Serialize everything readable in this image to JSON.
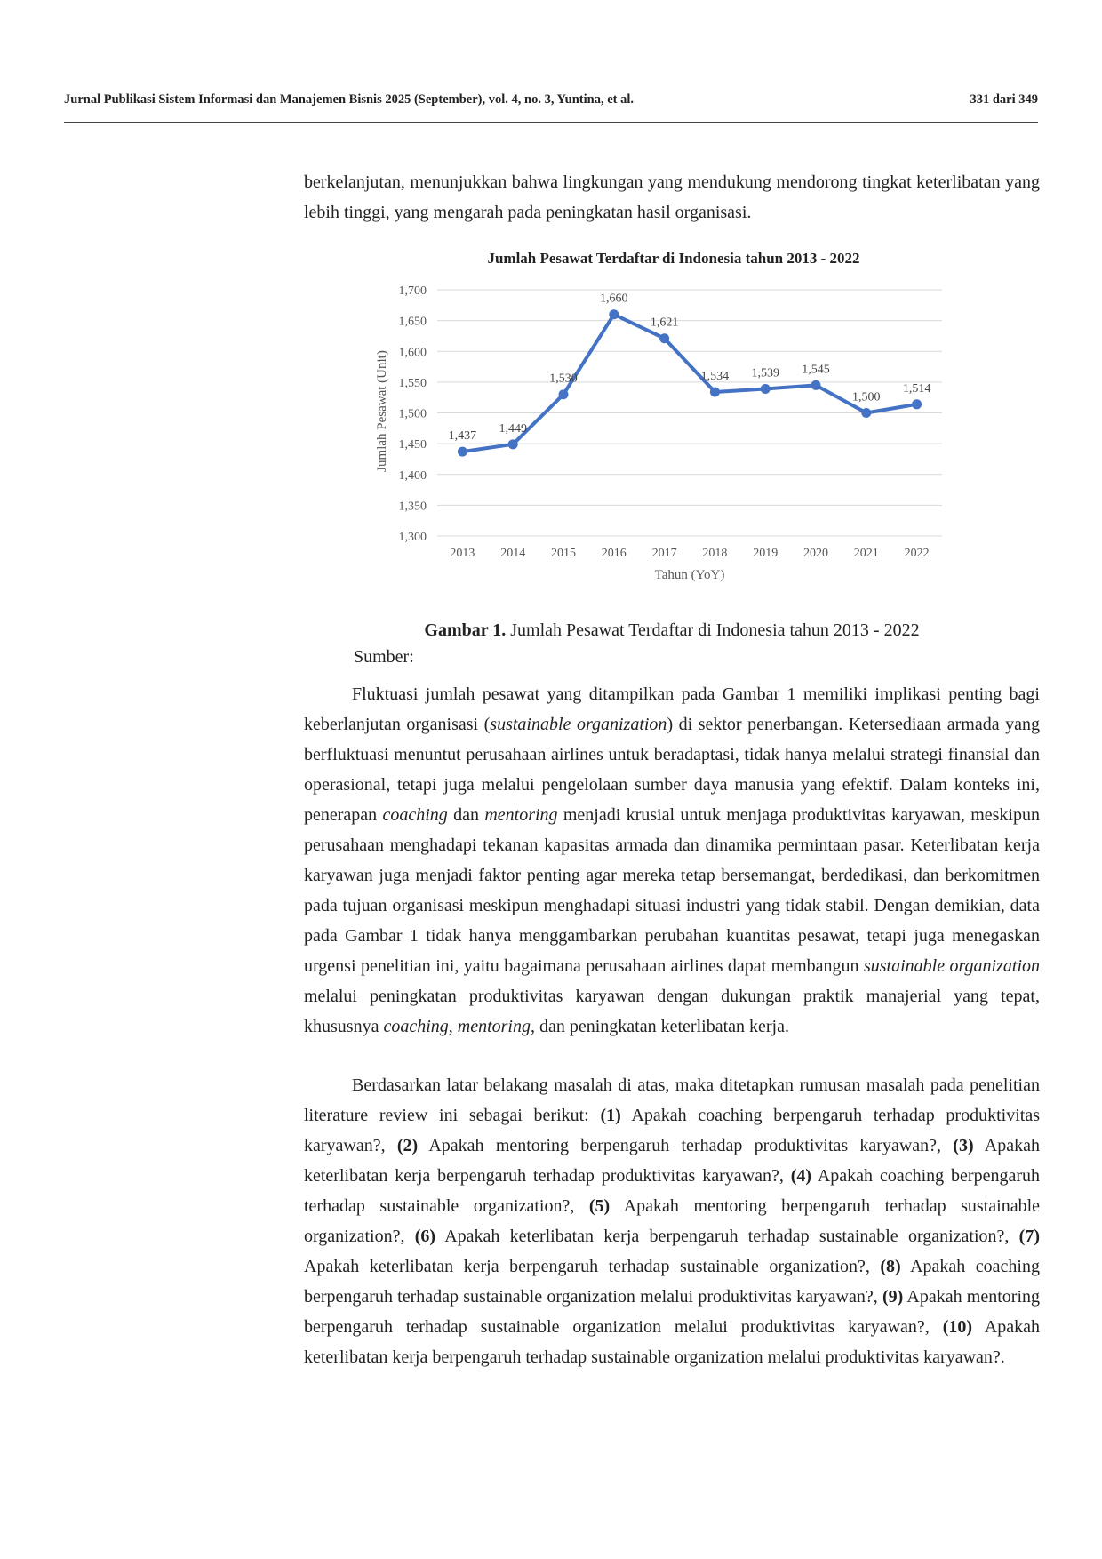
{
  "header": {
    "journal": "Jurnal Publikasi Sistem Informasi dan Manajemen Bisnis 2025 (September), vol. 4, no. 3, Yuntina, et al.",
    "page": "331 dari 349"
  },
  "intro_paragraph": "berkelanjutan, menunjukkan bahwa lingkungan yang mendukung mendorong tingkat keterlibatan yang lebih tinggi, yang mengarah pada peningkatan hasil organisasi.",
  "chart_data": {
    "type": "line",
    "title": "Jumlah Pesawat Terdaftar di Indonesia tahun 2013 - 2022",
    "xlabel": "Tahun (YoY)",
    "ylabel": "Jumlah Pesawat (Unit)",
    "categories": [
      "2013",
      "2014",
      "2015",
      "2016",
      "2017",
      "2018",
      "2019",
      "2020",
      "2021",
      "2022"
    ],
    "values": [
      1437,
      1449,
      1530,
      1660,
      1621,
      1534,
      1539,
      1545,
      1500,
      1514
    ],
    "data_labels": [
      "1,437",
      "1,449",
      "1,530",
      "1,660",
      "1,621",
      "1,534",
      "1,539",
      "1,545",
      "1,500",
      "1,514"
    ],
    "ylim": [
      1300,
      1700
    ],
    "yticks": [
      "1,300",
      "1,350",
      "1,400",
      "1,450",
      "1,500",
      "1,550",
      "1,600",
      "1,650",
      "1,700"
    ],
    "grid": true,
    "line_color": "#4472C4"
  },
  "caption": {
    "label": "Gambar 1.",
    "text": " Jumlah Pesawat Terdaftar di Indonesia tahun 2013 - 2022"
  },
  "source_label": "Sumber:",
  "para1": {
    "s1": "Fluktuasi jumlah pesawat yang ditampilkan pada Gambar 1 memiliki implikasi penting bagi keberlanjutan organisasi (",
    "i1": "sustainable organization",
    "s2": ") di sektor penerbangan. Ketersediaan armada yang berfluktuasi menuntut perusahaan airlines untuk beradaptasi, tidak hanya melalui strategi finansial dan operasional, tetapi juga melalui pengelolaan sumber daya manusia yang efektif. Dalam konteks ini, penerapan ",
    "i2": "coaching",
    "s3": " dan ",
    "i3": "mentoring",
    "s4": " menjadi krusial untuk menjaga produktivitas karyawan, meskipun perusahaan menghadapi tekanan kapasitas armada dan dinamika permintaan pasar. Keterlibatan kerja karyawan juga menjadi faktor penting agar mereka tetap bersemangat, berdedikasi, dan berkomitmen pada tujuan organisasi meskipun menghadapi situasi industri yang tidak stabil. Dengan demikian, data pada Gambar 1 tidak hanya menggambarkan perubahan kuantitas pesawat, tetapi juga menegaskan urgensi penelitian ini, yaitu bagaimana perusahaan airlines dapat membangun ",
    "i4": "sustainable organization",
    "s5": " melalui peningkatan produktivitas karyawan dengan dukungan praktik manajerial yang tepat, khususnya ",
    "i5": "coaching",
    "s6": ", ",
    "i6": "mentoring",
    "s7": ", dan peningkatan keterlibatan kerja."
  },
  "para2": {
    "s0": "Berdasarkan latar belakang masalah di atas, maka ditetapkan rumusan masalah pada penelitian literature review ini sebagai berikut: ",
    "n1": "(1)",
    "q1": " Apakah coaching berpengaruh terhadap produktivitas karyawan?, ",
    "n2": "(2)",
    "q2": " Apakah mentoring berpengaruh terhadap produktivitas karyawan?, ",
    "n3": "(3)",
    "q3": " Apakah keterlibatan kerja berpengaruh terhadap produktivitas karyawan?, ",
    "n4": "(4)",
    "q4": " Apakah coaching berpengaruh terhadap sustainable organization?, ",
    "n5": "(5)",
    "q5": " Apakah mentoring berpengaruh terhadap sustainable organization?, ",
    "n6": "(6)",
    "q6": " Apakah keterlibatan kerja berpengaruh terhadap sustainable organization?, ",
    "n7": "(7)",
    "q7": " Apakah keterlibatan kerja berpengaruh terhadap sustainable organization?, ",
    "n8": "(8)",
    "q8": " Apakah coaching berpengaruh terhadap sustainable organization melalui produktivitas karyawan?, ",
    "n9": "(9)",
    "q9": " Apakah mentoring berpengaruh terhadap sustainable organization melalui produktivitas karyawan?, ",
    "n10": "(10)",
    "q10": " Apakah keterlibatan kerja berpengaruh terhadap sustainable organization melalui produktivitas karyawan?."
  }
}
